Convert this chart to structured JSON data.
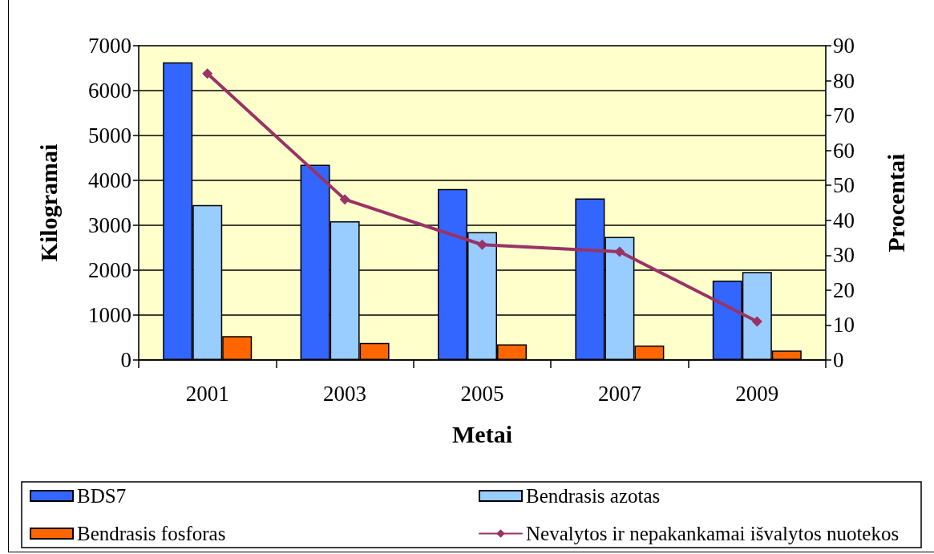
{
  "chart_data": {
    "type": "bar",
    "xlabel": "Metai",
    "ylabel": "Kilogramai",
    "y2label": "Procentai",
    "categories": [
      "2001",
      "2003",
      "2005",
      "2007",
      "2009"
    ],
    "ylim": [
      0,
      7000
    ],
    "yticks": [
      0,
      1000,
      2000,
      3000,
      4000,
      5000,
      6000,
      7000
    ],
    "y2lim": [
      0,
      90
    ],
    "y2ticks": [
      0,
      10,
      20,
      30,
      40,
      50,
      60,
      70,
      80,
      90
    ],
    "grid": "y",
    "legend": "bottom",
    "series": [
      {
        "name": "BDS7",
        "color": "#3366ff",
        "values": [
          6630,
          4350,
          3810,
          3600,
          1770
        ]
      },
      {
        "name": "Bendrasis azotas",
        "color": "#99ccff",
        "values": [
          3450,
          3090,
          2850,
          2740,
          1960
        ]
      },
      {
        "name": "Bendrasis fosforas",
        "color": "#ff6600",
        "values": [
          530,
          380,
          350,
          320,
          210
        ]
      },
      {
        "name": "Nevalytos ir nepakankamai išvalytos nuotekos",
        "type": "line",
        "axis": "y2",
        "color": "#993366",
        "marker": "diamond",
        "line_style": "solid",
        "values": [
          82,
          46,
          33,
          31,
          11
        ]
      }
    ]
  }
}
